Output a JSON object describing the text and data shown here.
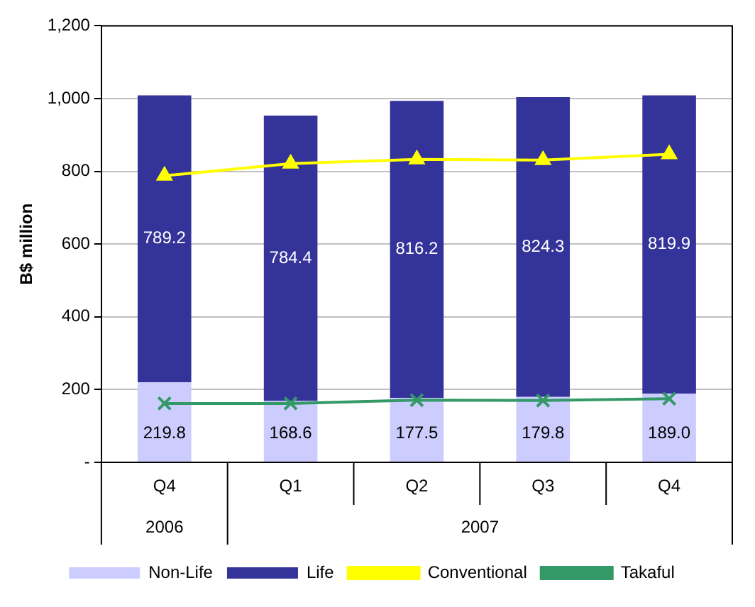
{
  "chart_data": {
    "type": "bar",
    "stacked": true,
    "ylabel": "B$ million",
    "categories": [
      "Q4",
      "Q1",
      "Q2",
      "Q3",
      "Q4"
    ],
    "series": [
      {
        "name": "Non-Life",
        "color": "#ccccff",
        "values": [
          219.8,
          168.6,
          177.5,
          179.8,
          189.0
        ],
        "value_labels": [
          "219.8",
          "168.6",
          "177.5",
          "179.8",
          "189.0"
        ]
      },
      {
        "name": "Life",
        "color": "#333399",
        "values": [
          789.2,
          784.4,
          816.2,
          824.3,
          819.9
        ],
        "value_labels": [
          "789.2",
          "784.4",
          "816.2",
          "824.3",
          "819.9"
        ]
      },
      {
        "name": "Conventional",
        "type": "line",
        "color": "#ffff00",
        "marker": "triangle",
        "values": [
          788,
          821,
          833,
          831,
          847
        ]
      },
      {
        "name": "Takaful",
        "type": "line",
        "color": "#339966",
        "marker": "cross",
        "values": [
          162,
          162,
          171,
          170,
          175
        ]
      }
    ],
    "ylim": [
      0,
      1200
    ],
    "yticks": [
      {
        "value": 0,
        "label": "-"
      },
      200,
      400,
      600,
      800,
      {
        "value": 1000,
        "label": "1,000"
      },
      {
        "value": 1200,
        "label": "1,200"
      }
    ],
    "grid": "y",
    "legend": "bottom",
    "annotations": [
      "2006",
      "2007"
    ]
  }
}
